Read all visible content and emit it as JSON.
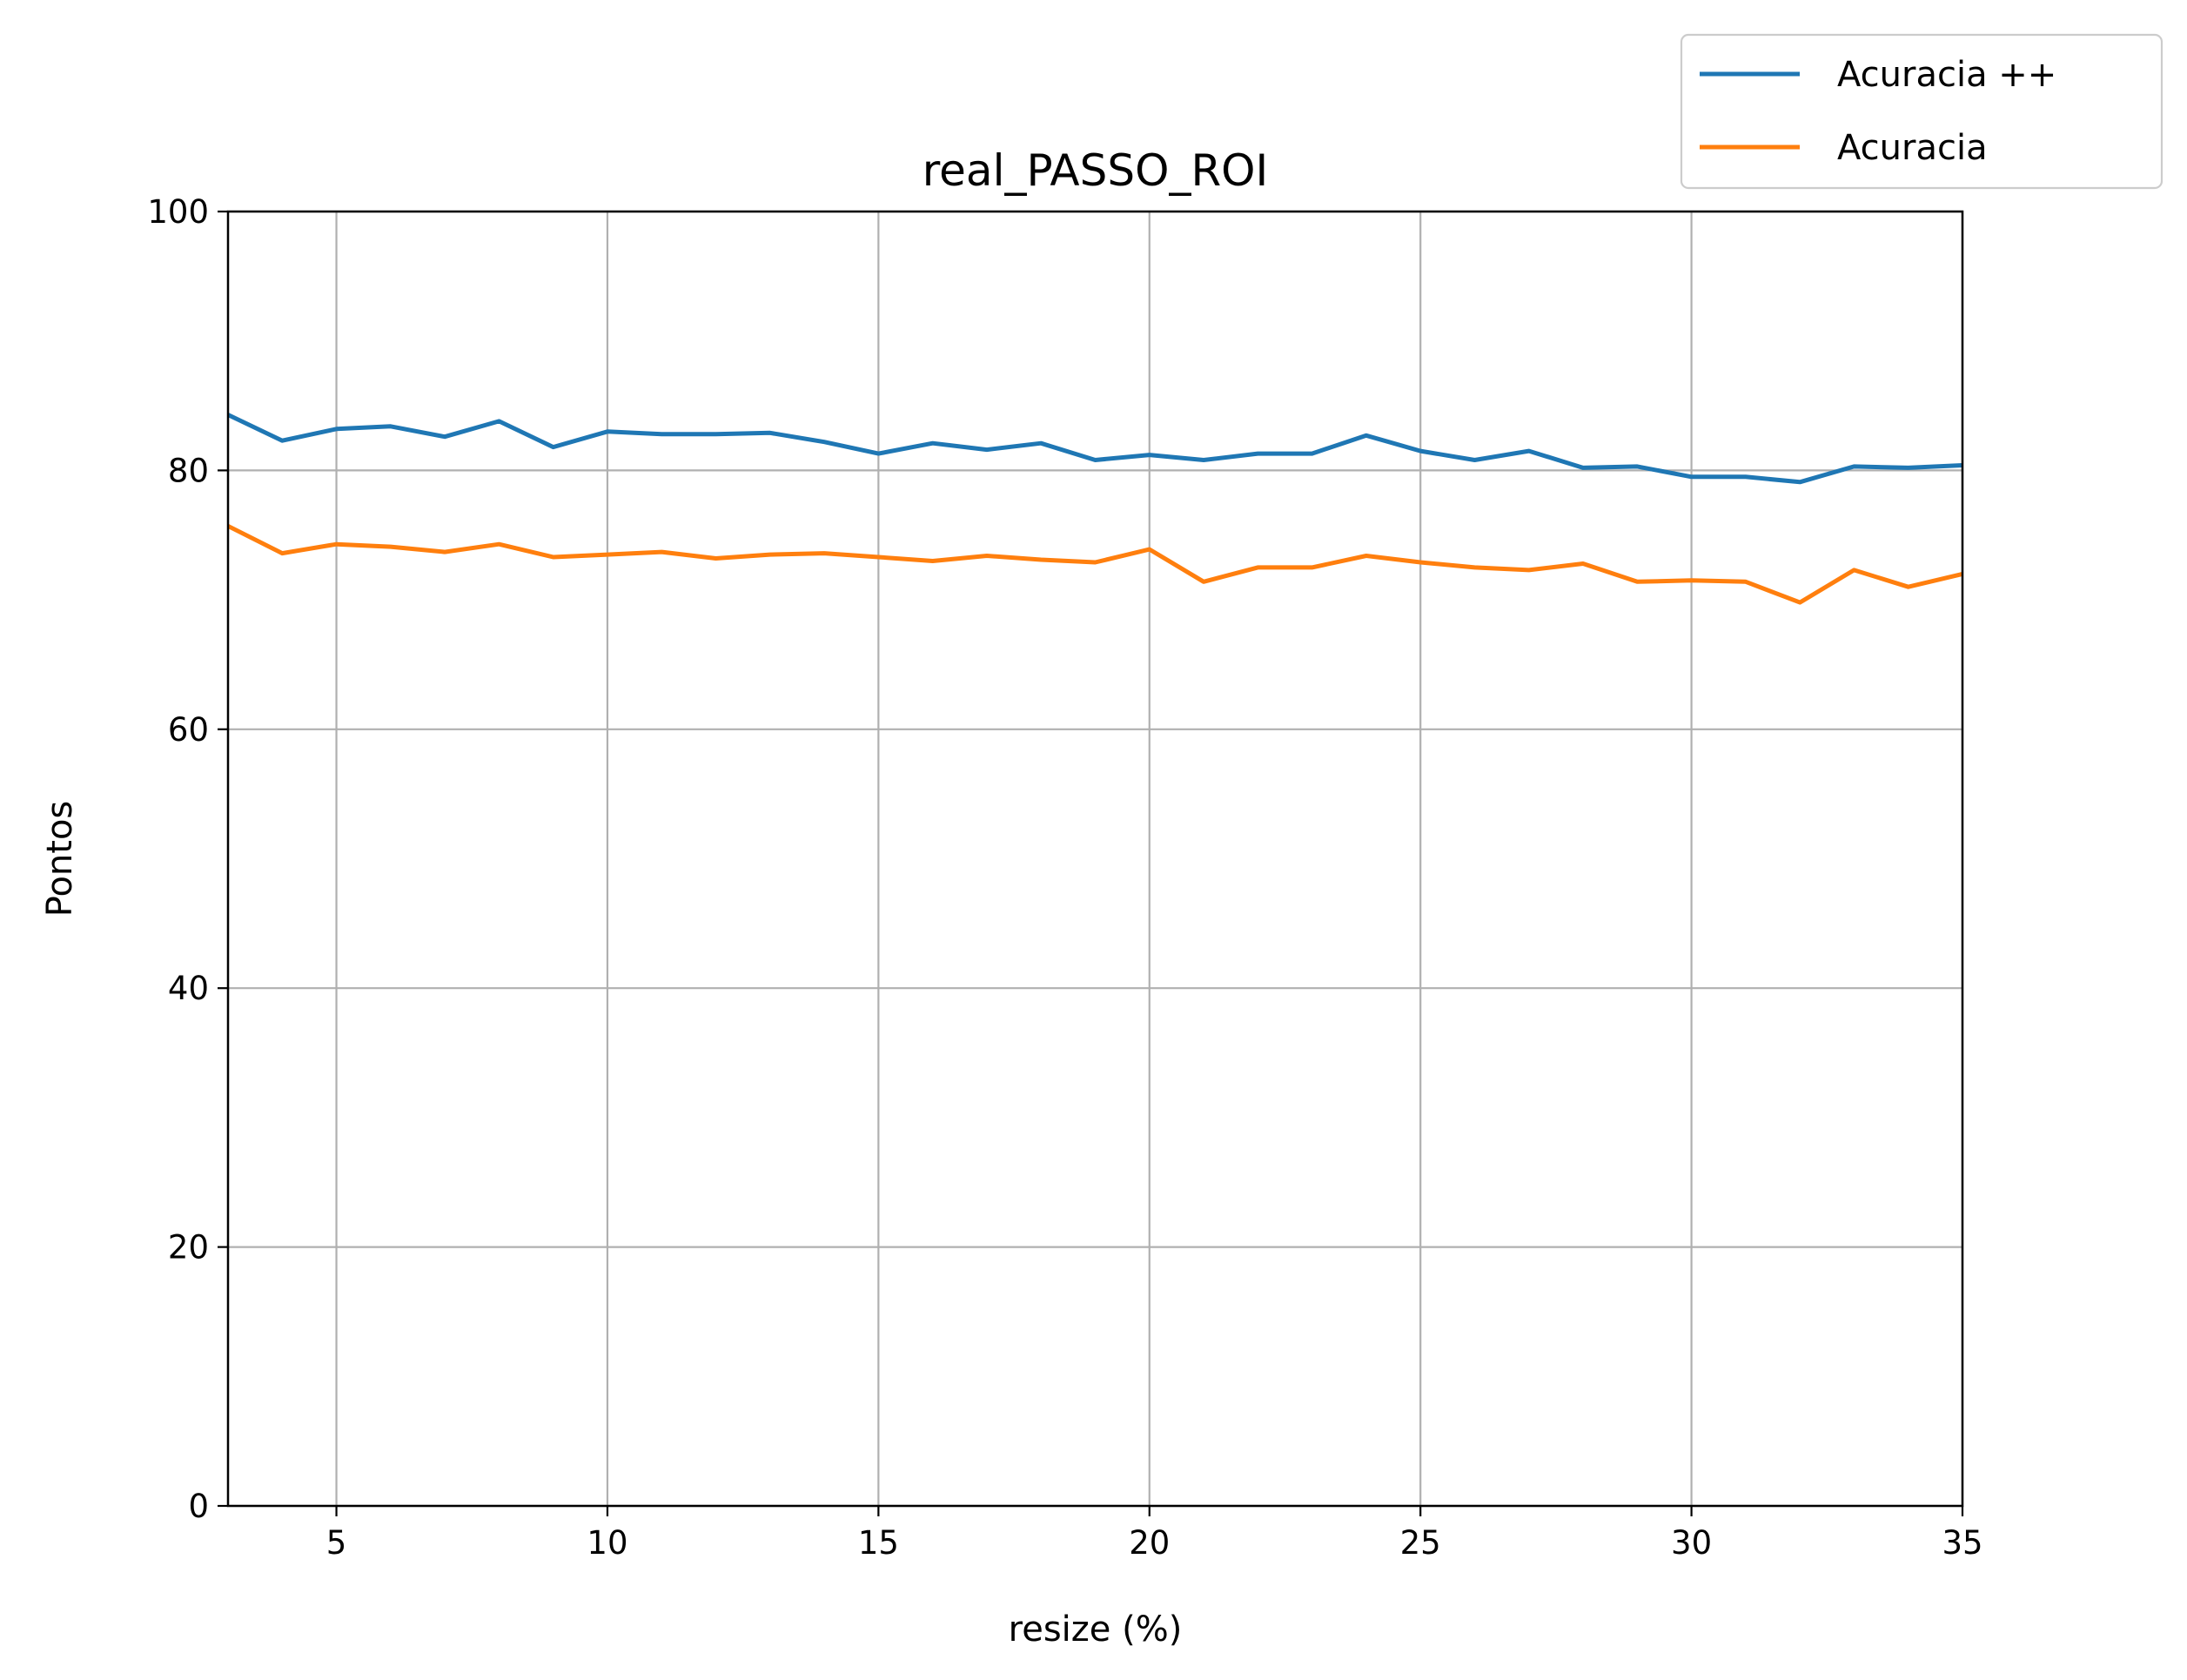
{
  "chart_data": {
    "type": "line",
    "title": "real_PASSO_ROI",
    "xlabel": "resize (%)",
    "ylabel": "Pontos",
    "xlim": [
      3,
      35
    ],
    "ylim": [
      0,
      100
    ],
    "xticks": [
      5,
      10,
      15,
      20,
      25,
      30,
      35
    ],
    "yticks": [
      0,
      20,
      40,
      60,
      80,
      100
    ],
    "grid": true,
    "legend_position": "top-right",
    "x": [
      3,
      4,
      5,
      6,
      7,
      8,
      9,
      10,
      11,
      12,
      13,
      14,
      15,
      16,
      17,
      18,
      19,
      20,
      21,
      22,
      23,
      24,
      25,
      26,
      27,
      28,
      29,
      30,
      31,
      32,
      33,
      34,
      35
    ],
    "series": [
      {
        "name": "Acuracia ++",
        "color": "#1f77b4",
        "values": [
          84.3,
          82.3,
          83.2,
          83.4,
          82.6,
          83.8,
          81.8,
          83.0,
          82.8,
          82.8,
          82.9,
          82.2,
          81.3,
          82.1,
          81.6,
          82.1,
          80.8,
          81.2,
          80.8,
          81.3,
          81.3,
          82.7,
          81.5,
          80.8,
          81.5,
          80.2,
          80.3,
          79.5,
          79.5,
          79.1,
          80.3,
          80.2,
          80.4
        ]
      },
      {
        "name": "Acuracia",
        "color": "#ff7f0e",
        "values": [
          75.7,
          73.6,
          74.3,
          74.1,
          73.7,
          74.3,
          73.3,
          73.5,
          73.7,
          73.2,
          73.5,
          73.6,
          73.3,
          73.0,
          73.4,
          73.1,
          72.9,
          73.9,
          71.4,
          72.5,
          72.5,
          73.4,
          72.9,
          72.5,
          72.3,
          72.8,
          71.4,
          71.5,
          71.4,
          69.8,
          72.3,
          71.0,
          72.0
        ]
      }
    ]
  }
}
